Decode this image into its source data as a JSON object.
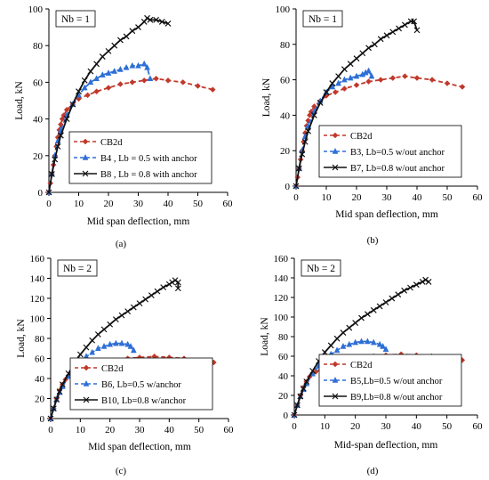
{
  "chart_data": [
    {
      "type": "line",
      "tag": "(a)",
      "annotation": "Nb = 1",
      "xlabel": "Mid span deflection, mm",
      "ylabel": "Load, kN",
      "xlim": [
        0,
        60
      ],
      "ylim": [
        0,
        100
      ],
      "xticks": [
        0,
        10,
        20,
        30,
        40,
        50,
        60
      ],
      "yticks": [
        0,
        20,
        40,
        60,
        80,
        100
      ],
      "grid": false,
      "legend": "bottom-right",
      "series": [
        {
          "name": "CB2d",
          "color": "#c0392b",
          "dash": "dashed",
          "marker": "diamond",
          "x": [
            0,
            0.5,
            1,
            1.5,
            2,
            2.5,
            3,
            3.5,
            4,
            4.5,
            5,
            6,
            8,
            10,
            13,
            16,
            20,
            24,
            28,
            32,
            36,
            40,
            45,
            50,
            55
          ],
          "y": [
            0,
            5,
            10,
            15,
            20,
            25,
            30,
            34,
            37,
            40,
            42,
            45,
            48,
            51,
            53,
            55,
            57,
            59,
            60,
            61,
            62,
            61,
            60,
            58,
            56
          ]
        },
        {
          "name": "B4 , Lb = 0.5 with anchor",
          "color": "#2e6fd6",
          "dash": "dashed",
          "marker": "triangle",
          "x": [
            0,
            1,
            2,
            3,
            4,
            6,
            8,
            10,
            12,
            14,
            16,
            18,
            20,
            22,
            24,
            26,
            28,
            30,
            32,
            33,
            34
          ],
          "y": [
            0,
            10,
            20,
            28,
            34,
            42,
            48,
            53,
            57,
            60,
            62,
            64,
            65,
            66,
            67,
            68,
            69,
            69,
            70,
            68,
            62
          ]
        },
        {
          "name": "B8 , Lb = 0.8 with anchor",
          "color": "#111111",
          "dash": "solid",
          "marker": "x",
          "x": [
            0,
            1,
            2,
            3,
            4,
            6,
            8,
            10,
            12,
            14,
            16,
            18,
            20,
            22,
            24,
            26,
            28,
            30,
            32,
            33,
            34,
            36,
            38,
            40
          ],
          "y": [
            0,
            10,
            18,
            25,
            31,
            40,
            48,
            55,
            61,
            66,
            70,
            74,
            77,
            80,
            83,
            85,
            88,
            90,
            93,
            95,
            94,
            94,
            93,
            92
          ]
        }
      ]
    },
    {
      "type": "line",
      "tag": "(b)",
      "annotation": "Nb = 1",
      "xlabel": "Mid span deflection, mm",
      "ylabel": "Load, kN",
      "xlim": [
        0,
        60
      ],
      "ylim": [
        0,
        100
      ],
      "xticks": [
        0,
        10,
        20,
        30,
        40,
        50,
        60
      ],
      "yticks": [
        0,
        20,
        40,
        60,
        80,
        100
      ],
      "grid": false,
      "legend": "bottom-right",
      "series": [
        {
          "name": "CB2d",
          "color": "#c0392b",
          "dash": "dashed",
          "marker": "diamond",
          "x": [
            0,
            0.5,
            1,
            1.5,
            2,
            2.5,
            3,
            3.5,
            4,
            4.5,
            5,
            6,
            8,
            10,
            13,
            16,
            20,
            24,
            28,
            32,
            36,
            40,
            45,
            50,
            55
          ],
          "y": [
            0,
            5,
            10,
            15,
            20,
            25,
            30,
            34,
            37,
            40,
            42,
            45,
            48,
            51,
            53,
            55,
            57,
            59,
            60,
            61,
            62,
            61,
            60,
            58,
            56
          ]
        },
        {
          "name": "B3, Lb=0.5 w/out anchor",
          "color": "#2e6fd6",
          "dash": "dashed",
          "marker": "triangle",
          "x": [
            0,
            1,
            2,
            3,
            4,
            6,
            8,
            10,
            12,
            14,
            16,
            18,
            20,
            22,
            23,
            24,
            25
          ],
          "y": [
            0,
            10,
            20,
            28,
            34,
            42,
            48,
            53,
            56,
            58,
            60,
            61,
            62,
            63,
            64,
            65,
            62
          ]
        },
        {
          "name": "B7, Lb=0.8 w/out anchor",
          "color": "#111111",
          "dash": "solid",
          "marker": "x",
          "x": [
            0,
            1,
            2,
            3,
            4,
            6,
            8,
            10,
            12,
            14,
            16,
            18,
            20,
            22,
            24,
            26,
            28,
            30,
            32,
            34,
            36,
            38,
            39,
            40
          ],
          "y": [
            0,
            10,
            18,
            25,
            31,
            40,
            47,
            53,
            58,
            62,
            66,
            69,
            72,
            75,
            78,
            80,
            83,
            85,
            87,
            89,
            91,
            93,
            93,
            88
          ]
        }
      ]
    },
    {
      "type": "line",
      "tag": "(c)",
      "annotation": "Nb = 2",
      "xlabel": "Mid span deflection, mm",
      "ylabel": "Load, kN",
      "xlim": [
        0,
        60
      ],
      "ylim": [
        0,
        160
      ],
      "xticks": [
        0,
        10,
        20,
        30,
        40,
        50,
        60
      ],
      "yticks": [
        0,
        20,
        40,
        60,
        80,
        100,
        120,
        140,
        160
      ],
      "grid": false,
      "legend": "bottom-right",
      "series": [
        {
          "name": "CB2d",
          "color": "#c0392b",
          "dash": "dashed",
          "marker": "diamond",
          "x": [
            0,
            1,
            2,
            3,
            4,
            5,
            7,
            10,
            14,
            18,
            22,
            26,
            30,
            35,
            40,
            45,
            50,
            55
          ],
          "y": [
            0,
            10,
            20,
            28,
            34,
            39,
            44,
            49,
            53,
            56,
            58,
            60,
            61,
            62,
            61,
            60,
            58,
            56
          ]
        },
        {
          "name": "B6, Lb=0.5 w/anchor",
          "color": "#2e6fd6",
          "dash": "dashed",
          "marker": "triangle",
          "x": [
            0,
            1,
            2,
            3,
            4,
            6,
            8,
            10,
            12,
            14,
            16,
            18,
            20,
            22,
            24,
            26,
            27,
            28
          ],
          "y": [
            0,
            10,
            19,
            26,
            32,
            42,
            50,
            57,
            62,
            66,
            70,
            72,
            74,
            75,
            75,
            74,
            72,
            68
          ]
        },
        {
          "name": "B10, Lb=0.8 w/anchor",
          "color": "#111111",
          "dash": "solid",
          "marker": "x",
          "x": [
            0,
            1,
            2,
            3,
            4,
            6,
            8,
            10,
            12,
            14,
            16,
            18,
            20,
            22,
            24,
            26,
            28,
            30,
            32,
            34,
            36,
            38,
            40,
            41,
            42,
            43,
            43
          ],
          "y": [
            0,
            10,
            19,
            27,
            34,
            45,
            55,
            64,
            71,
            78,
            84,
            89,
            94,
            99,
            103,
            107,
            111,
            115,
            119,
            123,
            127,
            131,
            134,
            136,
            138,
            136,
            130
          ]
        }
      ]
    },
    {
      "type": "line",
      "tag": "(d)",
      "annotation": "Nb = 2",
      "xlabel": "Mid-span deflection, mm",
      "ylabel": "Load, kN",
      "xlim": [
        0,
        60
      ],
      "ylim": [
        0,
        160
      ],
      "xticks": [
        0,
        10,
        20,
        30,
        40,
        50,
        60
      ],
      "yticks": [
        0,
        20,
        40,
        60,
        80,
        100,
        120,
        140,
        160
      ],
      "grid": false,
      "legend": "bottom-right",
      "series": [
        {
          "name": "CB2d",
          "color": "#c0392b",
          "dash": "dashed",
          "marker": "diamond",
          "x": [
            0,
            1,
            2,
            3,
            4,
            5,
            7,
            10,
            14,
            18,
            22,
            26,
            30,
            35,
            40,
            45,
            50,
            55
          ],
          "y": [
            0,
            10,
            20,
            28,
            34,
            39,
            44,
            49,
            53,
            56,
            58,
            60,
            61,
            62,
            61,
            60,
            58,
            56
          ]
        },
        {
          "name": "B5,Lb=0.5 w/out anchor",
          "color": "#2e6fd6",
          "dash": "dashed",
          "marker": "triangle",
          "x": [
            0,
            1,
            2,
            3,
            4,
            6,
            8,
            10,
            12,
            14,
            16,
            18,
            20,
            22,
            24,
            26,
            28,
            29,
            30
          ],
          "y": [
            0,
            10,
            19,
            26,
            32,
            42,
            50,
            57,
            62,
            66,
            70,
            72,
            74,
            75,
            75,
            74,
            72,
            70,
            67
          ]
        },
        {
          "name": "B9,Lb=0.8 w/out anchor",
          "color": "#111111",
          "dash": "solid",
          "marker": "x",
          "x": [
            0,
            1,
            2,
            3,
            4,
            6,
            8,
            10,
            12,
            14,
            16,
            18,
            20,
            22,
            24,
            26,
            28,
            30,
            32,
            34,
            36,
            38,
            40,
            42,
            43,
            44
          ],
          "y": [
            0,
            10,
            19,
            27,
            34,
            45,
            55,
            64,
            71,
            78,
            84,
            89,
            94,
            99,
            103,
            107,
            111,
            115,
            119,
            123,
            127,
            130,
            133,
            136,
            138,
            136
          ]
        }
      ]
    }
  ]
}
